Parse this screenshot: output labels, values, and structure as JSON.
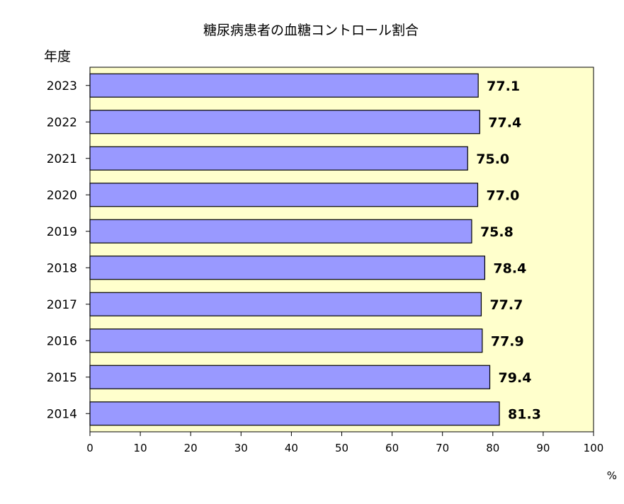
{
  "chart_data": {
    "type": "bar",
    "orientation": "horizontal",
    "title": "糖尿病患者の血糖コントロール割合",
    "ylabel": "年度",
    "xunit": "%",
    "categories": [
      "2023",
      "2022",
      "2021",
      "2020",
      "2019",
      "2018",
      "2017",
      "2016",
      "2015",
      "2014"
    ],
    "values": [
      77.1,
      77.4,
      75.0,
      77.0,
      75.8,
      78.4,
      77.7,
      77.9,
      79.4,
      81.3
    ],
    "value_labels": [
      "77.1",
      "77.4",
      "75.0",
      "77.0",
      "75.8",
      "78.4",
      "77.7",
      "77.9",
      "79.4",
      "81.3"
    ],
    "xlim": [
      0,
      100
    ],
    "xticks": [
      "0",
      "10",
      "20",
      "30",
      "40",
      "50",
      "60",
      "70",
      "80",
      "90",
      "100"
    ],
    "grid": false,
    "legend": "none",
    "colors": {
      "bar_fill": "#9999ff",
      "bar_stroke": "#000000",
      "plot_background": "#ffffcc"
    }
  }
}
